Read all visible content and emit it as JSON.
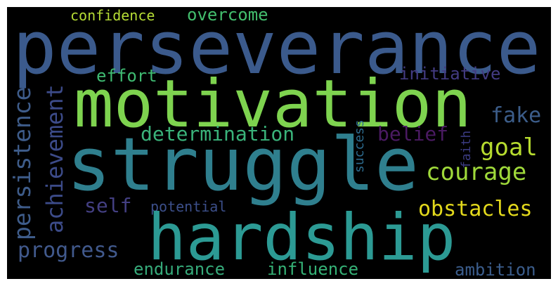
{
  "wordcloud": {
    "background": "#000000",
    "words": {
      "perseverance": {
        "text": "perseverance",
        "color": "#3b5a8c"
      },
      "motivation": {
        "text": "motivation",
        "color": "#7ed34f"
      },
      "struggle": {
        "text": "struggle",
        "color": "#2f7f8e"
      },
      "hardship": {
        "text": "hardship",
        "color": "#2c9a94"
      },
      "confidence": {
        "text": "confidence",
        "color": "#b5dc35"
      },
      "overcome": {
        "text": "overcome",
        "color": "#43be6d"
      },
      "effort": {
        "text": "effort",
        "color": "#3fbb72"
      },
      "initiative": {
        "text": "initiative",
        "color": "#433b82"
      },
      "fake": {
        "text": "fake",
        "color": "#3c5d8a"
      },
      "determination": {
        "text": "determination",
        "color": "#3ab37a"
      },
      "belief": {
        "text": "belief",
        "color": "#4a1a62"
      },
      "goal": {
        "text": "goal",
        "color": "#b7dc2f"
      },
      "courage": {
        "text": "courage",
        "color": "#9fd93a"
      },
      "self": {
        "text": "self",
        "color": "#433f82"
      },
      "potential": {
        "text": "potential",
        "color": "#3c4f8a"
      },
      "obstacles": {
        "text": "obstacles",
        "color": "#e3d91c"
      },
      "progress": {
        "text": "progress",
        "color": "#41598c"
      },
      "endurance": {
        "text": "endurance",
        "color": "#36aa7a"
      },
      "influence": {
        "text": "influence",
        "color": "#35b176"
      },
      "ambition": {
        "text": "ambition",
        "color": "#3b5d8c"
      },
      "persistence": {
        "text": "persistence",
        "color": "#3e5c8a"
      },
      "achievement": {
        "text": "achievement",
        "color": "#3c4b89"
      },
      "success": {
        "text": "success",
        "color": "#2d6b8e"
      },
      "faith": {
        "text": "faith",
        "color": "#3a3a7f"
      }
    }
  }
}
